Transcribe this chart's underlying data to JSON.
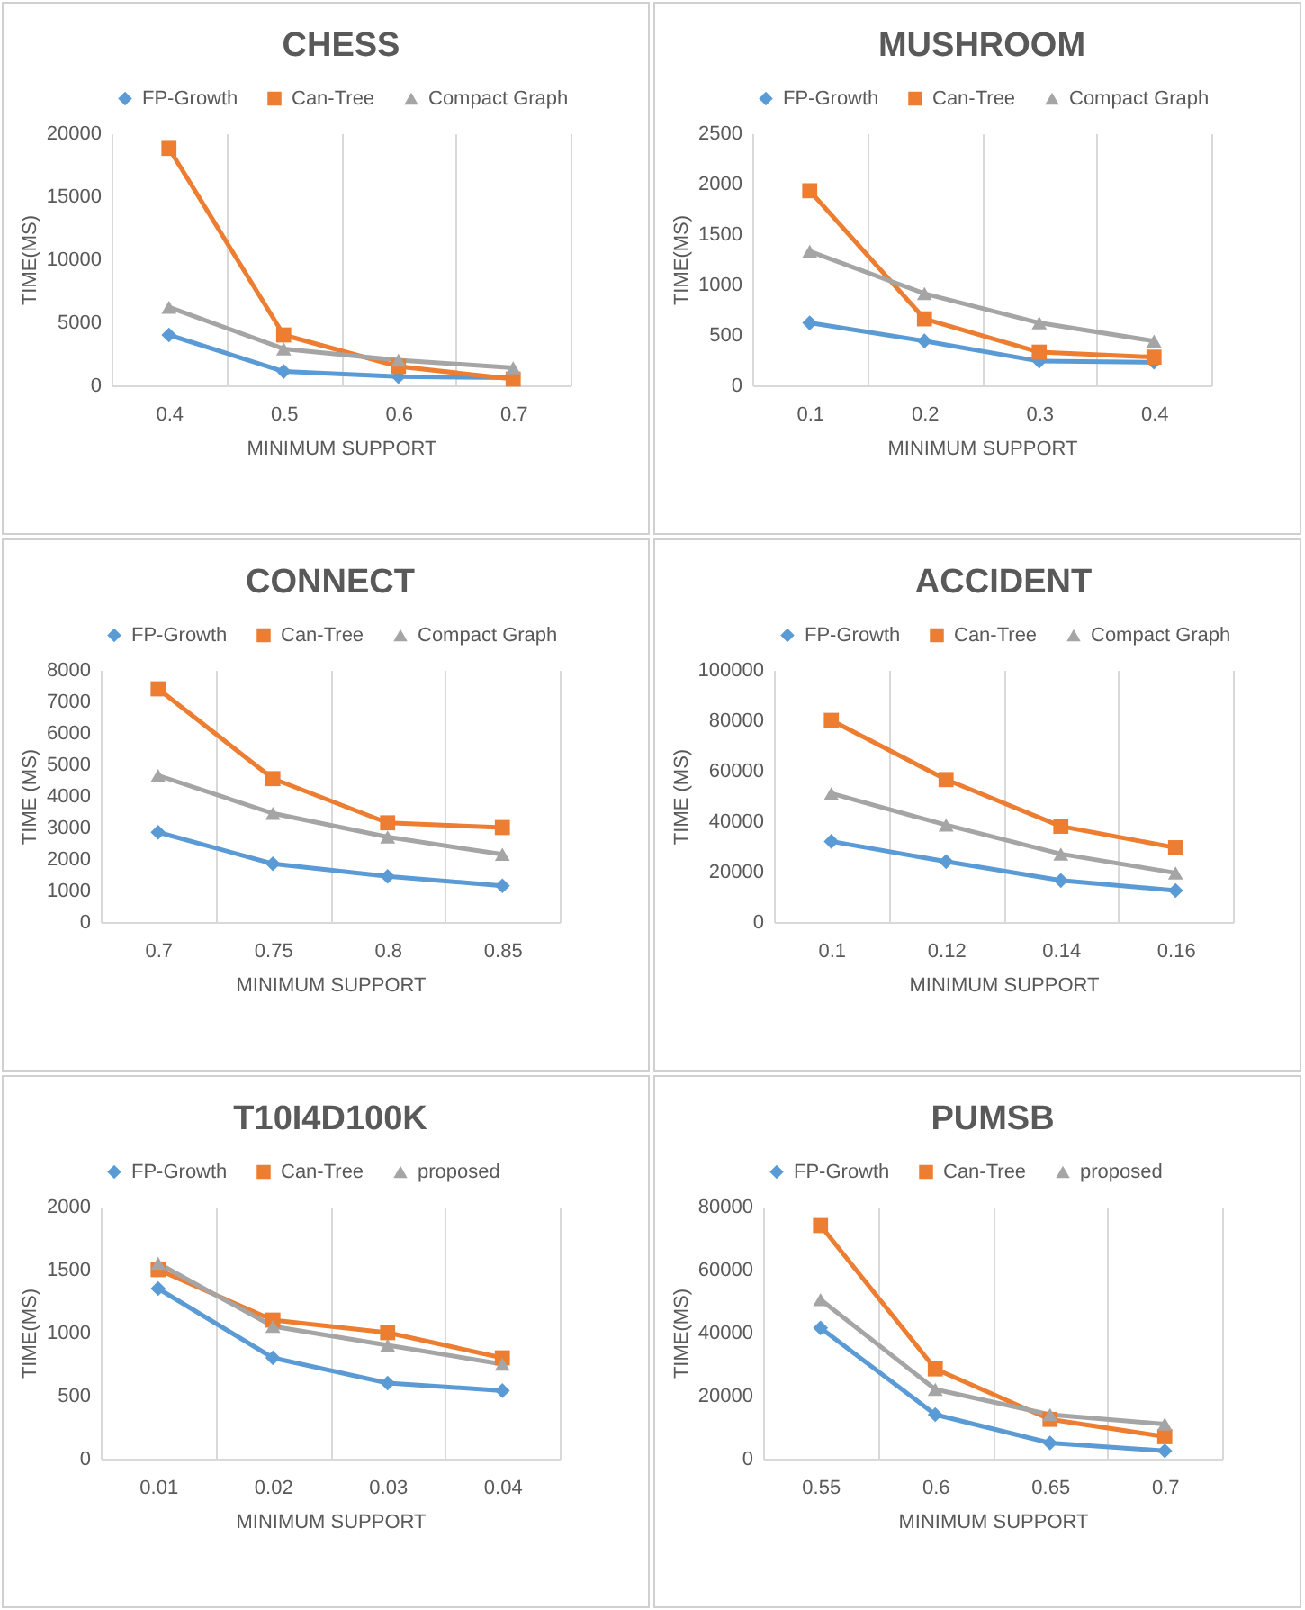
{
  "chart_data": [
    {
      "type": "line",
      "title": "CHESS",
      "xlabel": "MINIMUM SUPPORT",
      "ylabel": "TIME(MS)",
      "categories": [
        "0.4",
        "0.5",
        "0.6",
        "0.7"
      ],
      "ylim": [
        0,
        20000
      ],
      "yticks": [
        0,
        5000,
        10000,
        15000,
        20000
      ],
      "grid": "x",
      "legend": "top",
      "series": [
        {
          "name": "FP-Growth",
          "color": "#5b9bd5",
          "marker": "diamond",
          "values": [
            4000,
            1100,
            700,
            600
          ]
        },
        {
          "name": "Can-Tree",
          "color": "#ed7d31",
          "marker": "square",
          "values": [
            18800,
            4000,
            1500,
            500
          ]
        },
        {
          "name": "Compact Graph",
          "color": "#a5a5a5",
          "marker": "triangle",
          "values": [
            6200,
            2900,
            2000,
            1400
          ]
        }
      ]
    },
    {
      "type": "line",
      "title": "MUSHROOM",
      "xlabel": "MINIMUM SUPPORT",
      "ylabel": "TIME(MS)",
      "categories": [
        "0.1",
        "0.2",
        "0.3",
        "0.4"
      ],
      "ylim": [
        0,
        2500
      ],
      "yticks": [
        0,
        500,
        1000,
        1500,
        2000,
        2500
      ],
      "grid": "x",
      "legend": "top",
      "series": [
        {
          "name": "FP-Growth",
          "color": "#5b9bd5",
          "marker": "diamond",
          "values": [
            620,
            440,
            240,
            230
          ]
        },
        {
          "name": "Can-Tree",
          "color": "#ed7d31",
          "marker": "square",
          "values": [
            1930,
            660,
            330,
            280
          ]
        },
        {
          "name": "Compact Graph",
          "color": "#a5a5a5",
          "marker": "triangle",
          "values": [
            1330,
            910,
            620,
            440
          ]
        }
      ]
    },
    {
      "type": "line",
      "title": "CONNECT",
      "xlabel": "MINIMUM SUPPORT",
      "ylabel": "TIME (MS)",
      "categories": [
        "0.7",
        "0.75",
        "0.8",
        "0.85"
      ],
      "ylim": [
        0,
        8000
      ],
      "yticks": [
        0,
        1000,
        2000,
        3000,
        4000,
        5000,
        6000,
        7000,
        8000
      ],
      "grid": "x",
      "legend": "top",
      "series": [
        {
          "name": "FP-Growth",
          "color": "#5b9bd5",
          "marker": "diamond",
          "values": [
            2850,
            1850,
            1450,
            1150
          ]
        },
        {
          "name": "Can-Tree",
          "color": "#ed7d31",
          "marker": "square",
          "values": [
            7400,
            4550,
            3150,
            3000
          ]
        },
        {
          "name": "Compact Graph",
          "color": "#a5a5a5",
          "marker": "triangle",
          "values": [
            4650,
            3450,
            2700,
            2150
          ]
        }
      ]
    },
    {
      "type": "line",
      "title": "ACCIDENT",
      "xlabel": "MINIMUM SUPPORT",
      "ylabel": "TIME (MS)",
      "categories": [
        "0.1",
        "0.12",
        "0.14",
        "0.16"
      ],
      "ylim": [
        0,
        100000
      ],
      "yticks": [
        0,
        20000,
        40000,
        60000,
        80000,
        100000
      ],
      "grid": "x",
      "legend": "top",
      "series": [
        {
          "name": "FP-Growth",
          "color": "#5b9bd5",
          "marker": "diamond",
          "values": [
            32000,
            24000,
            16500,
            12500
          ]
        },
        {
          "name": "Can-Tree",
          "color": "#ed7d31",
          "marker": "square",
          "values": [
            80000,
            56500,
            38000,
            29500
          ]
        },
        {
          "name": "Compact Graph",
          "color": "#a5a5a5",
          "marker": "triangle",
          "values": [
            51000,
            38500,
            27000,
            19500
          ]
        }
      ]
    },
    {
      "type": "line",
      "title": "T10I4D100K",
      "xlabel": "MINIMUM SUPPORT",
      "ylabel": "TIME(MS)",
      "categories": [
        "0.01",
        "0.02",
        "0.03",
        "0.04"
      ],
      "ylim": [
        0,
        2000
      ],
      "yticks": [
        0,
        500,
        1000,
        1500,
        2000
      ],
      "grid": "x",
      "legend": "top",
      "series": [
        {
          "name": "FP-Growth",
          "color": "#5b9bd5",
          "marker": "diamond",
          "values": [
            1350,
            800,
            600,
            540
          ]
        },
        {
          "name": "Can-Tree",
          "color": "#ed7d31",
          "marker": "square",
          "values": [
            1500,
            1100,
            1000,
            800
          ]
        },
        {
          "name": "proposed",
          "color": "#a5a5a5",
          "marker": "triangle",
          "values": [
            1550,
            1050,
            900,
            750
          ]
        }
      ]
    },
    {
      "type": "line",
      "title": "PUMSB",
      "xlabel": "MINIMUM SUPPORT",
      "ylabel": "TIME(MS)",
      "categories": [
        "0.55",
        "0.6",
        "0.65",
        "0.7"
      ],
      "ylim": [
        0,
        80000
      ],
      "yticks": [
        0,
        20000,
        40000,
        60000,
        80000
      ],
      "grid": "x",
      "legend": "top",
      "series": [
        {
          "name": "FP-Growth",
          "color": "#5b9bd5",
          "marker": "diamond",
          "values": [
            41500,
            14000,
            5000,
            2500
          ]
        },
        {
          "name": "Can-Tree",
          "color": "#ed7d31",
          "marker": "square",
          "values": [
            74000,
            28500,
            12500,
            7000
          ]
        },
        {
          "name": "proposed",
          "color": "#a5a5a5",
          "marker": "triangle",
          "values": [
            50500,
            22000,
            14000,
            11000
          ]
        }
      ]
    }
  ]
}
